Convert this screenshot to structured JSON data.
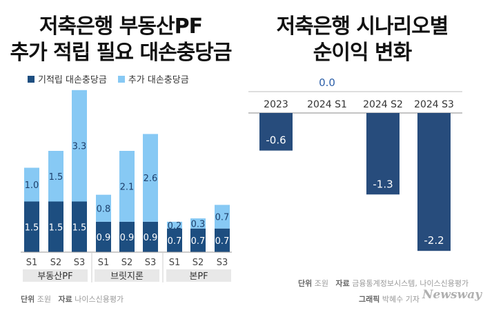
{
  "colors": {
    "dark": "#1d4e80",
    "light": "#87c9f4",
    "right_bar": "#274c7c",
    "group_bg": "#e8e8e8"
  },
  "left": {
    "title_line1": "저축은행 부동산PF",
    "title_line2": "추가 적립 필요 대손충당금",
    "legend": [
      "기적립 대손충당금",
      "추가 대손충당금"
    ],
    "footer_unit_label": "단위",
    "footer_unit": "조원",
    "footer_source_label": "자료",
    "footer_source": "나이스신용평가"
  },
  "right": {
    "title_line1": "저축은행 시나리오별",
    "title_line2": "순이익 변화",
    "footer_unit_label": "단위",
    "footer_unit": "조원",
    "footer_source_label": "자료",
    "footer_source": "금융통계정보시스템, 나이스신용평가",
    "credit_label": "그래픽",
    "credit_name": "박혜수 기자",
    "logo": "Newsway"
  },
  "chart_data": [
    {
      "type": "bar",
      "stacked": true,
      "title": "저축은행 부동산PF 추가 적립 필요 대손충당금",
      "groups": [
        "부동산PF",
        "브릿지론",
        "본PF"
      ],
      "categories": [
        "S1",
        "S2",
        "S3",
        "S1",
        "S2",
        "S3",
        "S1",
        "S2",
        "S3"
      ],
      "series": [
        {
          "name": "기적립 대손충당금",
          "values": [
            1.5,
            1.5,
            1.5,
            0.9,
            0.9,
            0.9,
            0.7,
            0.7,
            0.7
          ]
        },
        {
          "name": "추가 대손충당금",
          "values": [
            1.0,
            1.5,
            3.3,
            0.8,
            2.1,
            2.6,
            0.2,
            0.3,
            0.7
          ]
        }
      ],
      "labels": [
        [
          "1.5",
          "1.5",
          "1.5",
          "0.9",
          "0.9",
          "0.9",
          "0.7",
          "0.7",
          "0.7"
        ],
        [
          "1.0",
          "1.5",
          "3.3",
          "0.8",
          "2.1",
          "2.6",
          "0.2",
          "0.3",
          "0.7"
        ]
      ],
      "unit": "조원",
      "ylim": [
        0,
        4.9
      ]
    },
    {
      "type": "bar",
      "title": "저축은행 시나리오별 순이익 변화",
      "categories": [
        "2023",
        "2024 S1",
        "2024 S2",
        "2024 S3"
      ],
      "values": [
        -0.6,
        0.0,
        -1.3,
        -2.2
      ],
      "labels": [
        "-0.6",
        "0.0",
        "-1.3",
        "-2.2"
      ],
      "unit": "조원",
      "ylim": [
        -2.5,
        0
      ]
    }
  ]
}
